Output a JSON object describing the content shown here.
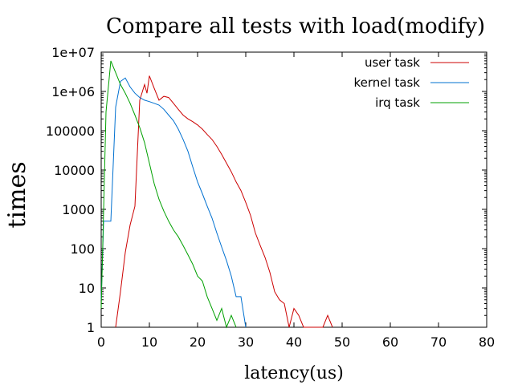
{
  "chart_data": {
    "type": "line",
    "title": "Compare all tests with load(modify)",
    "xlabel": "latency(us)",
    "ylabel": "times",
    "xlim": [
      0,
      80
    ],
    "ylim": [
      1,
      10000000
    ],
    "y_scale": "log",
    "grid": false,
    "legend_position": "top-right",
    "x_ticks": [
      "0",
      "10",
      "20",
      "30",
      "40",
      "50",
      "60",
      "70",
      "80"
    ],
    "y_ticks": [
      "1",
      "10",
      "100",
      "1000",
      "10000",
      "100000",
      "1e+06",
      "1e+07"
    ],
    "series": [
      {
        "name": "user task",
        "color": "#cc0000",
        "points": [
          [
            3,
            1
          ],
          [
            4,
            8
          ],
          [
            5,
            80
          ],
          [
            6,
            400
          ],
          [
            7,
            1200
          ],
          [
            8,
            600000
          ],
          [
            9,
            1500000
          ],
          [
            9.5,
            900000
          ],
          [
            10,
            2500000
          ],
          [
            11,
            1200000
          ],
          [
            12,
            600000
          ],
          [
            13,
            750000
          ],
          [
            14,
            700000
          ],
          [
            15,
            500000
          ],
          [
            16,
            350000
          ],
          [
            17,
            250000
          ],
          [
            18,
            200000
          ],
          [
            19,
            170000
          ],
          [
            20,
            140000
          ],
          [
            21,
            110000
          ],
          [
            22,
            80000
          ],
          [
            23,
            60000
          ],
          [
            24,
            40000
          ],
          [
            25,
            25000
          ],
          [
            26,
            15000
          ],
          [
            27,
            9000
          ],
          [
            28,
            5000
          ],
          [
            29,
            3000
          ],
          [
            30,
            1500
          ],
          [
            31,
            700
          ],
          [
            32,
            250
          ],
          [
            33,
            120
          ],
          [
            34,
            60
          ],
          [
            35,
            25
          ],
          [
            36,
            8
          ],
          [
            37,
            5
          ],
          [
            38,
            4
          ],
          [
            39,
            1
          ],
          [
            40,
            3
          ],
          [
            41,
            2
          ],
          [
            42,
            1
          ],
          [
            46,
            1
          ],
          [
            47,
            2
          ],
          [
            48,
            1
          ]
        ]
      },
      {
        "name": "kernel task",
        "color": "#0070d0",
        "points": [
          [
            0,
            5
          ],
          [
            0.5,
            500
          ],
          [
            1.5,
            500
          ],
          [
            2,
            500
          ],
          [
            3,
            400000
          ],
          [
            4,
            1800000
          ],
          [
            5,
            2200000
          ],
          [
            6,
            1300000
          ],
          [
            7,
            900000
          ],
          [
            8,
            700000
          ],
          [
            9,
            600000
          ],
          [
            10,
            550000
          ],
          [
            11,
            500000
          ],
          [
            12,
            450000
          ],
          [
            13,
            350000
          ],
          [
            14,
            250000
          ],
          [
            15,
            180000
          ],
          [
            16,
            110000
          ],
          [
            17,
            60000
          ],
          [
            18,
            30000
          ],
          [
            19,
            12000
          ],
          [
            20,
            5000
          ],
          [
            21,
            2500
          ],
          [
            22,
            1200
          ],
          [
            23,
            600
          ],
          [
            24,
            250
          ],
          [
            25,
            110
          ],
          [
            26,
            50
          ],
          [
            27,
            20
          ],
          [
            28,
            6
          ],
          [
            29,
            6
          ],
          [
            30,
            1
          ]
        ]
      },
      {
        "name": "irq task",
        "color": "#00a000",
        "points": [
          [
            0,
            3
          ],
          [
            1,
            300000
          ],
          [
            2,
            6000000
          ],
          [
            3,
            3000000
          ],
          [
            4,
            1500000
          ],
          [
            5,
            900000
          ],
          [
            6,
            500000
          ],
          [
            7,
            250000
          ],
          [
            8,
            120000
          ],
          [
            9,
            50000
          ],
          [
            10,
            15000
          ],
          [
            11,
            4500
          ],
          [
            12,
            1800
          ],
          [
            13,
            900
          ],
          [
            14,
            500
          ],
          [
            15,
            300
          ],
          [
            16,
            200
          ],
          [
            17,
            120
          ],
          [
            18,
            70
          ],
          [
            19,
            40
          ],
          [
            20,
            20
          ],
          [
            21,
            15
          ],
          [
            22,
            6
          ],
          [
            23,
            3
          ],
          [
            24,
            1.5
          ],
          [
            25,
            3
          ],
          [
            26,
            1
          ],
          [
            27,
            2
          ],
          [
            28,
            1
          ]
        ]
      }
    ]
  }
}
